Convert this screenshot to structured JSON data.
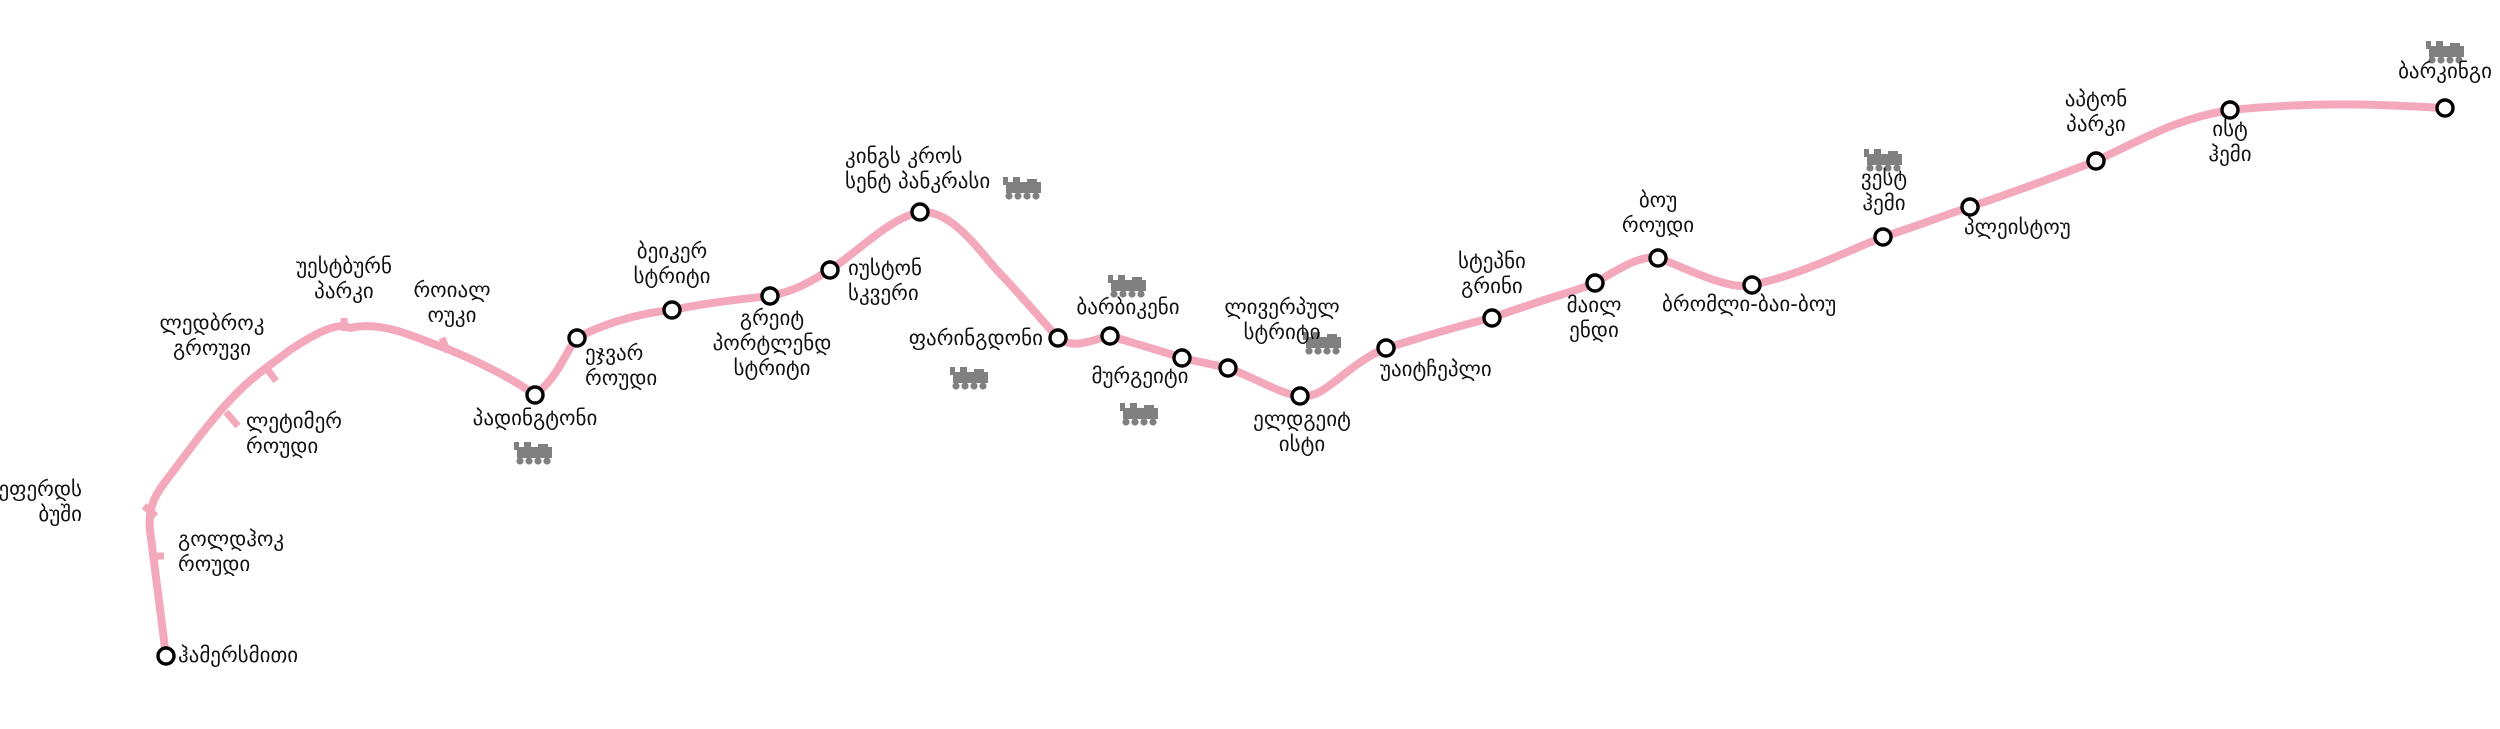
{
  "line": {
    "color": "#F3A9BB",
    "interchange_icon": "train-icon",
    "interchange_icon_color": "#808080"
  },
  "stations": [
    {
      "id": "hammersmith",
      "lines": [
        "ჰამერსმითი"
      ],
      "interchange": false,
      "stop": "circle"
    },
    {
      "id": "goldhawk-road",
      "lines": [
        "გოლდჰოკ",
        "როუდი"
      ],
      "interchange": false,
      "stop": "tick"
    },
    {
      "id": "shepherds-bush",
      "lines": [
        "შეფერდს",
        "ბუში"
      ],
      "interchange": false,
      "stop": "tick"
    },
    {
      "id": "latimer-road",
      "lines": [
        "ლეტიმერ",
        "როუდი"
      ],
      "interchange": false,
      "stop": "tick"
    },
    {
      "id": "ladbroke-grove",
      "lines": [
        "ლედბროკ",
        "გროუვი"
      ],
      "interchange": false,
      "stop": "tick"
    },
    {
      "id": "westbourne-park",
      "lines": [
        "უესტბურნ",
        "პარკი"
      ],
      "interchange": false,
      "stop": "tick"
    },
    {
      "id": "royal-oak",
      "lines": [
        "როიალ",
        "ოუკი"
      ],
      "interchange": false,
      "stop": "tick"
    },
    {
      "id": "paddington",
      "lines": [
        "პადინგტონი"
      ],
      "interchange": true,
      "stop": "circle"
    },
    {
      "id": "edgware-road",
      "lines": [
        "ეჯვარ",
        "როუდი"
      ],
      "interchange": false,
      "stop": "circle"
    },
    {
      "id": "baker-street",
      "lines": [
        "ბეიკერ",
        "სტრიტი"
      ],
      "interchange": false,
      "stop": "circle"
    },
    {
      "id": "great-portland-street",
      "lines": [
        "გრეიტ",
        "პორტლენდ",
        "სტრიტი"
      ],
      "interchange": false,
      "stop": "circle"
    },
    {
      "id": "euston-square",
      "lines": [
        "იუსტონ",
        "სკვერი"
      ],
      "interchange": false,
      "stop": "circle"
    },
    {
      "id": "kings-cross",
      "lines": [
        "კინგს კროს",
        "სენტ პანკრასი"
      ],
      "interchange": true,
      "stop": "circle"
    },
    {
      "id": "farringdon",
      "lines": [
        "ფარინგდონი"
      ],
      "interchange": true,
      "stop": "circle"
    },
    {
      "id": "barbican",
      "lines": [
        "ბარბიკენი"
      ],
      "interchange": true,
      "stop": "circle"
    },
    {
      "id": "moorgate",
      "lines": [
        "მურგეიტი"
      ],
      "interchange": true,
      "stop": "circle"
    },
    {
      "id": "liverpool-street",
      "lines": [
        "ლივერპულ",
        "სტრიტი"
      ],
      "interchange": true,
      "stop": "circle"
    },
    {
      "id": "aldgate-east",
      "lines": [
        "ელდგეიტ",
        "ისტი"
      ],
      "interchange": false,
      "stop": "circle"
    },
    {
      "id": "whitechapel",
      "lines": [
        "უაიტჩეპლი"
      ],
      "interchange": false,
      "stop": "circle"
    },
    {
      "id": "stepney-green",
      "lines": [
        "სტეპნი",
        "გრინი"
      ],
      "interchange": false,
      "stop": "circle"
    },
    {
      "id": "mile-end",
      "lines": [
        "მაილ",
        "ენდი"
      ],
      "interchange": false,
      "stop": "circle"
    },
    {
      "id": "bow-road",
      "lines": [
        "ბოუ",
        "როუდი"
      ],
      "interchange": false,
      "stop": "circle"
    },
    {
      "id": "bromley-by-bow",
      "lines": [
        "ბრომლი-ბაი-ბოუ"
      ],
      "interchange": false,
      "stop": "circle"
    },
    {
      "id": "west-ham",
      "lines": [
        "ვესტ",
        "ჰემი"
      ],
      "interchange": true,
      "stop": "circle"
    },
    {
      "id": "plaistow",
      "lines": [
        "პლეისტოუ"
      ],
      "interchange": false,
      "stop": "circle"
    },
    {
      "id": "upton-park",
      "lines": [
        "აპტონ",
        "პარკი"
      ],
      "interchange": false,
      "stop": "circle"
    },
    {
      "id": "east-ham",
      "lines": [
        "ისტ",
        "ჰემი"
      ],
      "interchange": false,
      "stop": "circle"
    },
    {
      "id": "barking",
      "lines": [
        "ბარკინგი"
      ],
      "interchange": true,
      "stop": "circle"
    }
  ]
}
